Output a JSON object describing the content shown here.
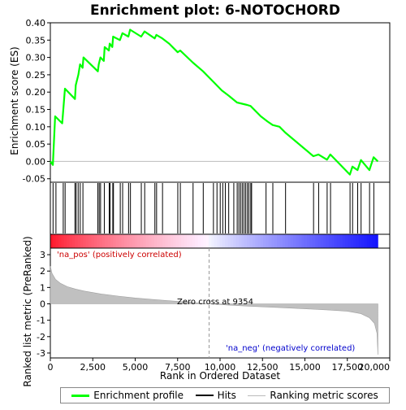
{
  "chart_data": {
    "type": "line",
    "title": "Enrichment plot: 6-NOTOCHORD",
    "xlabel": "Rank in Ordered Dataset",
    "ylabel_top": "Enrichment score (ES)",
    "ylabel_bottom": "Ranked list metric (PreRanked)",
    "x_range": [
      0,
      20000
    ],
    "x_ticks": [
      0,
      2500,
      5000,
      7500,
      10000,
      12500,
      15000,
      17500,
      20000
    ],
    "x_tick_labels": [
      "0",
      "2,500",
      "5,000",
      "7,500",
      "10,000",
      "12,500",
      "15,000",
      "17,500",
      "20,000"
    ],
    "es_ylim": [
      -0.06,
      0.4
    ],
    "es_ticks": [
      -0.05,
      0.0,
      0.05,
      0.1,
      0.15,
      0.2,
      0.25,
      0.3,
      0.35,
      0.4
    ],
    "es_tick_labels": [
      "-0.05",
      "0.00",
      "0.05",
      "0.10",
      "0.15",
      "0.20",
      "0.25",
      "0.30",
      "0.35",
      "0.40"
    ],
    "metric_ylim": [
      -3.3,
      3.4
    ],
    "metric_ticks": [
      -3,
      -2,
      -1,
      0,
      1,
      2,
      3
    ],
    "metric_tick_labels": [
      "-3",
      "-2",
      "-1",
      "0",
      "1",
      "2",
      "3"
    ],
    "n_genes": 19300,
    "zero_cross_rank": 9354,
    "zero_cross_label": "Zero cross at 9354",
    "pos_label": "'na_pos' (positively correlated)",
    "neg_label": "'na_neg' (negatively correlated)",
    "enrichment_profile": [
      [
        0,
        0.0
      ],
      [
        150,
        -0.01
      ],
      [
        280,
        0.13
      ],
      [
        700,
        0.11
      ],
      [
        780,
        0.16
      ],
      [
        860,
        0.21
      ],
      [
        1450,
        0.18
      ],
      [
        1500,
        0.22
      ],
      [
        1650,
        0.25
      ],
      [
        1750,
        0.28
      ],
      [
        1900,
        0.27
      ],
      [
        1950,
        0.3
      ],
      [
        2800,
        0.26
      ],
      [
        2850,
        0.28
      ],
      [
        2950,
        0.3
      ],
      [
        3150,
        0.29
      ],
      [
        3200,
        0.33
      ],
      [
        3450,
        0.32
      ],
      [
        3500,
        0.34
      ],
      [
        3650,
        0.33
      ],
      [
        3700,
        0.36
      ],
      [
        4100,
        0.35
      ],
      [
        4250,
        0.37
      ],
      [
        4600,
        0.36
      ],
      [
        4700,
        0.38
      ],
      [
        5350,
        0.36
      ],
      [
        5550,
        0.375
      ],
      [
        6150,
        0.355
      ],
      [
        6250,
        0.365
      ],
      [
        6600,
        0.355
      ],
      [
        7000,
        0.34
      ],
      [
        7500,
        0.315
      ],
      [
        7650,
        0.32
      ],
      [
        8400,
        0.285
      ],
      [
        9000,
        0.26
      ],
      [
        9600,
        0.23
      ],
      [
        10100,
        0.205
      ],
      [
        10500,
        0.19
      ],
      [
        11000,
        0.17
      ],
      [
        11600,
        0.163
      ],
      [
        11800,
        0.16
      ],
      [
        12400,
        0.13
      ],
      [
        12800,
        0.115
      ],
      [
        13100,
        0.105
      ],
      [
        13500,
        0.1
      ],
      [
        13850,
        0.083
      ],
      [
        15500,
        0.015
      ],
      [
        15800,
        0.02
      ],
      [
        16300,
        0.005
      ],
      [
        16500,
        0.02
      ],
      [
        17650,
        -0.038
      ],
      [
        17800,
        -0.015
      ],
      [
        18100,
        -0.025
      ],
      [
        18300,
        0.004
      ],
      [
        18800,
        -0.025
      ],
      [
        19050,
        0.012
      ],
      [
        19300,
        0.0
      ]
    ],
    "hit_ranks": [
      160,
      330,
      760,
      870,
      1450,
      1520,
      1640,
      1760,
      1920,
      2800,
      2880,
      2960,
      3180,
      3470,
      3520,
      3680,
      3720,
      4120,
      4260,
      4610,
      4720,
      5360,
      5560,
      6160,
      6260,
      6610,
      7510,
      7660,
      8410,
      9010,
      9610,
      9820,
      10010,
      10160,
      10310,
      10510,
      10810,
      11010,
      11110,
      11210,
      11310,
      11410,
      11510,
      11610,
      11700,
      11810,
      11860,
      12710,
      13110,
      13860,
      15510,
      15810,
      16310,
      16510,
      17660,
      17810,
      18110,
      18310,
      18810,
      19060
    ],
    "metric_curve": [
      [
        0,
        2.3
      ],
      [
        100,
        1.85
      ],
      [
        300,
        1.5
      ],
      [
        600,
        1.25
      ],
      [
        1000,
        1.05
      ],
      [
        1500,
        0.9
      ],
      [
        2000,
        0.78
      ],
      [
        3000,
        0.6
      ],
      [
        4000,
        0.47
      ],
      [
        5000,
        0.36
      ],
      [
        6000,
        0.27
      ],
      [
        7000,
        0.19
      ],
      [
        8000,
        0.11
      ],
      [
        9354,
        0.0
      ],
      [
        10500,
        -0.08
      ],
      [
        12000,
        -0.16
      ],
      [
        13500,
        -0.23
      ],
      [
        15000,
        -0.3
      ],
      [
        16500,
        -0.38
      ],
      [
        17500,
        -0.45
      ],
      [
        18300,
        -0.6
      ],
      [
        18800,
        -0.85
      ],
      [
        19100,
        -1.2
      ],
      [
        19250,
        -1.8
      ],
      [
        19300,
        -3.1
      ]
    ],
    "legend": [
      {
        "label": "Enrichment profile",
        "color": "#00ff00"
      },
      {
        "label": "Hits",
        "color": "#000000"
      },
      {
        "label": "Ranking metric scores",
        "color": "#bbbbbb"
      }
    ],
    "colors": {
      "profile": "#00ff00",
      "metric_fill": "#c0c0c0",
      "pos_label": "#cc0000",
      "neg_label": "#0000cc",
      "zero_line": "#999999"
    }
  }
}
